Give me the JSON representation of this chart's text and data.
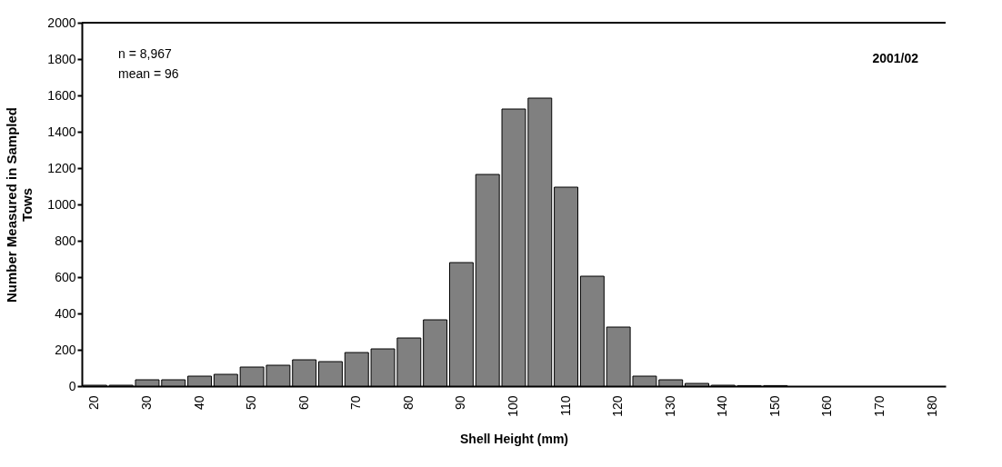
{
  "chart_data": {
    "type": "bar",
    "xlabel": "Shell Height (mm)",
    "ylabel": "Number Measured in Sampled Tows",
    "annotations": [
      "n = 8,967",
      "mean = 96",
      "2001/02"
    ],
    "categories": [
      "20",
      null,
      "30",
      null,
      "40",
      null,
      "50",
      null,
      "60",
      null,
      "70",
      null,
      "80",
      null,
      "90",
      null,
      "100",
      null,
      "110",
      null,
      "120",
      null,
      "130",
      null,
      "140",
      null,
      "150",
      null,
      "160",
      null,
      "170",
      null,
      "180"
    ],
    "values": [
      5,
      5,
      35,
      35,
      55,
      65,
      105,
      115,
      145,
      135,
      185,
      205,
      265,
      365,
      680,
      1165,
      1525,
      1585,
      1095,
      605,
      325,
      55,
      35,
      15,
      5,
      3,
      3,
      0,
      0,
      0,
      0,
      0,
      0
    ],
    "color": "#808080",
    "ylim": [
      0,
      2000
    ],
    "yticks": [
      0,
      200,
      400,
      600,
      800,
      1000,
      1200,
      1400,
      1600,
      1800,
      2000
    ],
    "grid": false
  }
}
